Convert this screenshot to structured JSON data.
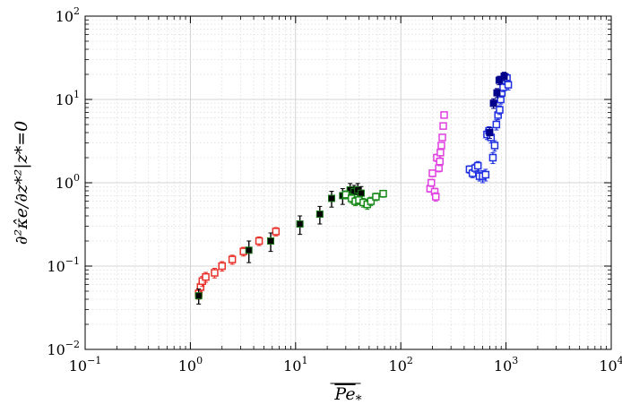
{
  "chart_data": {
    "type": "scatter",
    "title": "",
    "xlabel": "Pe*",
    "ylabel": "∂²κ̂e/∂z*²|z*=0",
    "xscale": "log",
    "yscale": "log",
    "xlim": [
      0.1,
      10000
    ],
    "ylim": [
      0.01,
      100
    ],
    "grid": true,
    "x_ticks": [
      {
        "base": "10",
        "exp": "−1",
        "value": 0.1
      },
      {
        "base": "10",
        "exp": "0",
        "value": 1
      },
      {
        "base": "10",
        "exp": "1",
        "value": 10
      },
      {
        "base": "10",
        "exp": "2",
        "value": 100
      },
      {
        "base": "10",
        "exp": "3",
        "value": 1000
      },
      {
        "base": "10",
        "exp": "4",
        "value": 10000
      }
    ],
    "y_ticks": [
      {
        "base": "10",
        "exp": "−2",
        "value": 0.01
      },
      {
        "base": "10",
        "exp": "−1",
        "value": 0.1
      },
      {
        "base": "10",
        "exp": "0",
        "value": 1
      },
      {
        "base": "10",
        "exp": "1",
        "value": 10
      },
      {
        "base": "10",
        "exp": "2",
        "value": 100
      }
    ],
    "series": [
      {
        "color": "#e8312a",
        "marker": "open-square",
        "points": [
          [
            1.2,
            0.047,
            0.007
          ],
          [
            1.25,
            0.056,
            0.008
          ],
          [
            1.3,
            0.066,
            0.009
          ],
          [
            1.4,
            0.074,
            0.01
          ],
          [
            1.7,
            0.083,
            0.011
          ],
          [
            2.0,
            0.1,
            0.013
          ],
          [
            2.5,
            0.12,
            0.015
          ],
          [
            3.2,
            0.15,
            0.018
          ],
          [
            4.5,
            0.2,
            0.024
          ],
          [
            6.5,
            0.26,
            0.03
          ]
        ]
      },
      {
        "color": "#000000",
        "marker": "filled-square",
        "edge": "#1a7a1a",
        "points": [
          [
            1.2,
            0.044,
            0.009
          ],
          [
            3.6,
            0.155,
            0.045
          ],
          [
            5.8,
            0.2,
            0.05
          ],
          [
            11,
            0.32,
            0.08
          ],
          [
            17,
            0.42,
            0.1
          ],
          [
            22,
            0.65,
            0.14
          ],
          [
            28,
            0.7,
            0.15
          ],
          [
            33,
            0.82,
            0.16
          ],
          [
            36,
            0.78,
            0.15
          ],
          [
            39,
            0.82,
            0.16
          ],
          [
            42,
            0.75,
            0.15
          ]
        ]
      },
      {
        "color": "#1a8a1a",
        "marker": "open-square",
        "points": [
          [
            30,
            0.72,
            0.08
          ],
          [
            34,
            0.65,
            0.08
          ],
          [
            37,
            0.6,
            0.07
          ],
          [
            40,
            0.62,
            0.07
          ],
          [
            44,
            0.58,
            0.07
          ],
          [
            48,
            0.55,
            0.07
          ],
          [
            52,
            0.6,
            0.07
          ],
          [
            58,
            0.68,
            0.07
          ],
          [
            68,
            0.74,
            0.07
          ]
        ]
      },
      {
        "color": "#e040e0",
        "marker": "open-square",
        "points": [
          [
            190,
            0.85,
            0.08
          ],
          [
            195,
            1.0,
            0.1
          ],
          [
            200,
            1.3,
            0.12
          ],
          [
            210,
            0.78,
            0.08
          ],
          [
            215,
            0.68,
            0.08
          ],
          [
            220,
            2.0,
            0.2
          ],
          [
            230,
            1.5,
            0.15
          ],
          [
            238,
            2.3,
            0.2
          ],
          [
            243,
            2.8,
            0.25
          ],
          [
            248,
            3.5,
            0.3
          ],
          [
            253,
            4.8,
            0.4
          ],
          [
            258,
            6.5,
            0.5
          ],
          [
            235,
            1.8,
            0.2
          ]
        ]
      },
      {
        "color": "#1f2fe0",
        "marker": "open-square",
        "points": [
          [
            450,
            1.45,
            0.15
          ],
          [
            480,
            1.3,
            0.15
          ],
          [
            510,
            1.5,
            0.18
          ],
          [
            540,
            1.6,
            0.2
          ],
          [
            560,
            1.2,
            0.15
          ],
          [
            600,
            1.2,
            0.2
          ],
          [
            640,
            1.25,
            0.2
          ],
          [
            660,
            3.8,
            0.5
          ],
          [
            690,
            4.2,
            0.5
          ],
          [
            720,
            3.5,
            0.5
          ],
          [
            750,
            2.0,
            0.3
          ],
          [
            780,
            2.8,
            0.4
          ],
          [
            810,
            5.0,
            0.7
          ],
          [
            840,
            6.5,
            0.8
          ],
          [
            870,
            7.5,
            0.9
          ],
          [
            890,
            10.0,
            1.2
          ],
          [
            910,
            12.0,
            1.4
          ],
          [
            940,
            14.0,
            1.6
          ],
          [
            980,
            17.0,
            2.0
          ],
          [
            1020,
            18.0,
            2.2
          ],
          [
            1050,
            15.0,
            2.0
          ]
        ]
      },
      {
        "color": "#00008a",
        "marker": "filled-square",
        "points": [
          [
            700,
            4.0,
            0.6
          ],
          [
            760,
            9.0,
            1.2
          ],
          [
            820,
            12.0,
            1.5
          ],
          [
            860,
            17.0,
            2.0
          ],
          [
            960,
            19.0,
            2.2
          ]
        ]
      }
    ]
  }
}
